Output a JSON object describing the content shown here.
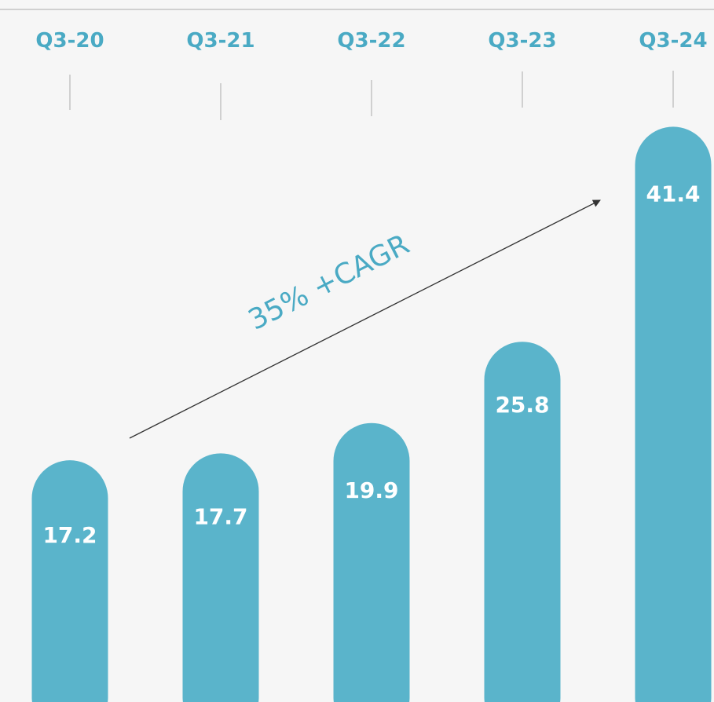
{
  "colors": {
    "bar": "#5ab4cb",
    "accent": "#4aaac4",
    "tick": "#c4c4c4",
    "arrow": "#333333",
    "background": "#f6f6f6"
  },
  "chart_data": {
    "type": "bar",
    "categories": [
      "Q3-20",
      "Q3-21",
      "Q3-22",
      "Q3-23",
      "Q3-24"
    ],
    "values": [
      17.2,
      17.7,
      19.9,
      25.8,
      41.4
    ],
    "value_labels": [
      "17.2",
      "17.7",
      "19.9",
      "25.8",
      "41.4"
    ],
    "title": "",
    "xlabel": "",
    "ylabel": "",
    "grid": false,
    "legend": "none",
    "annotation": "35% +CAGR"
  }
}
